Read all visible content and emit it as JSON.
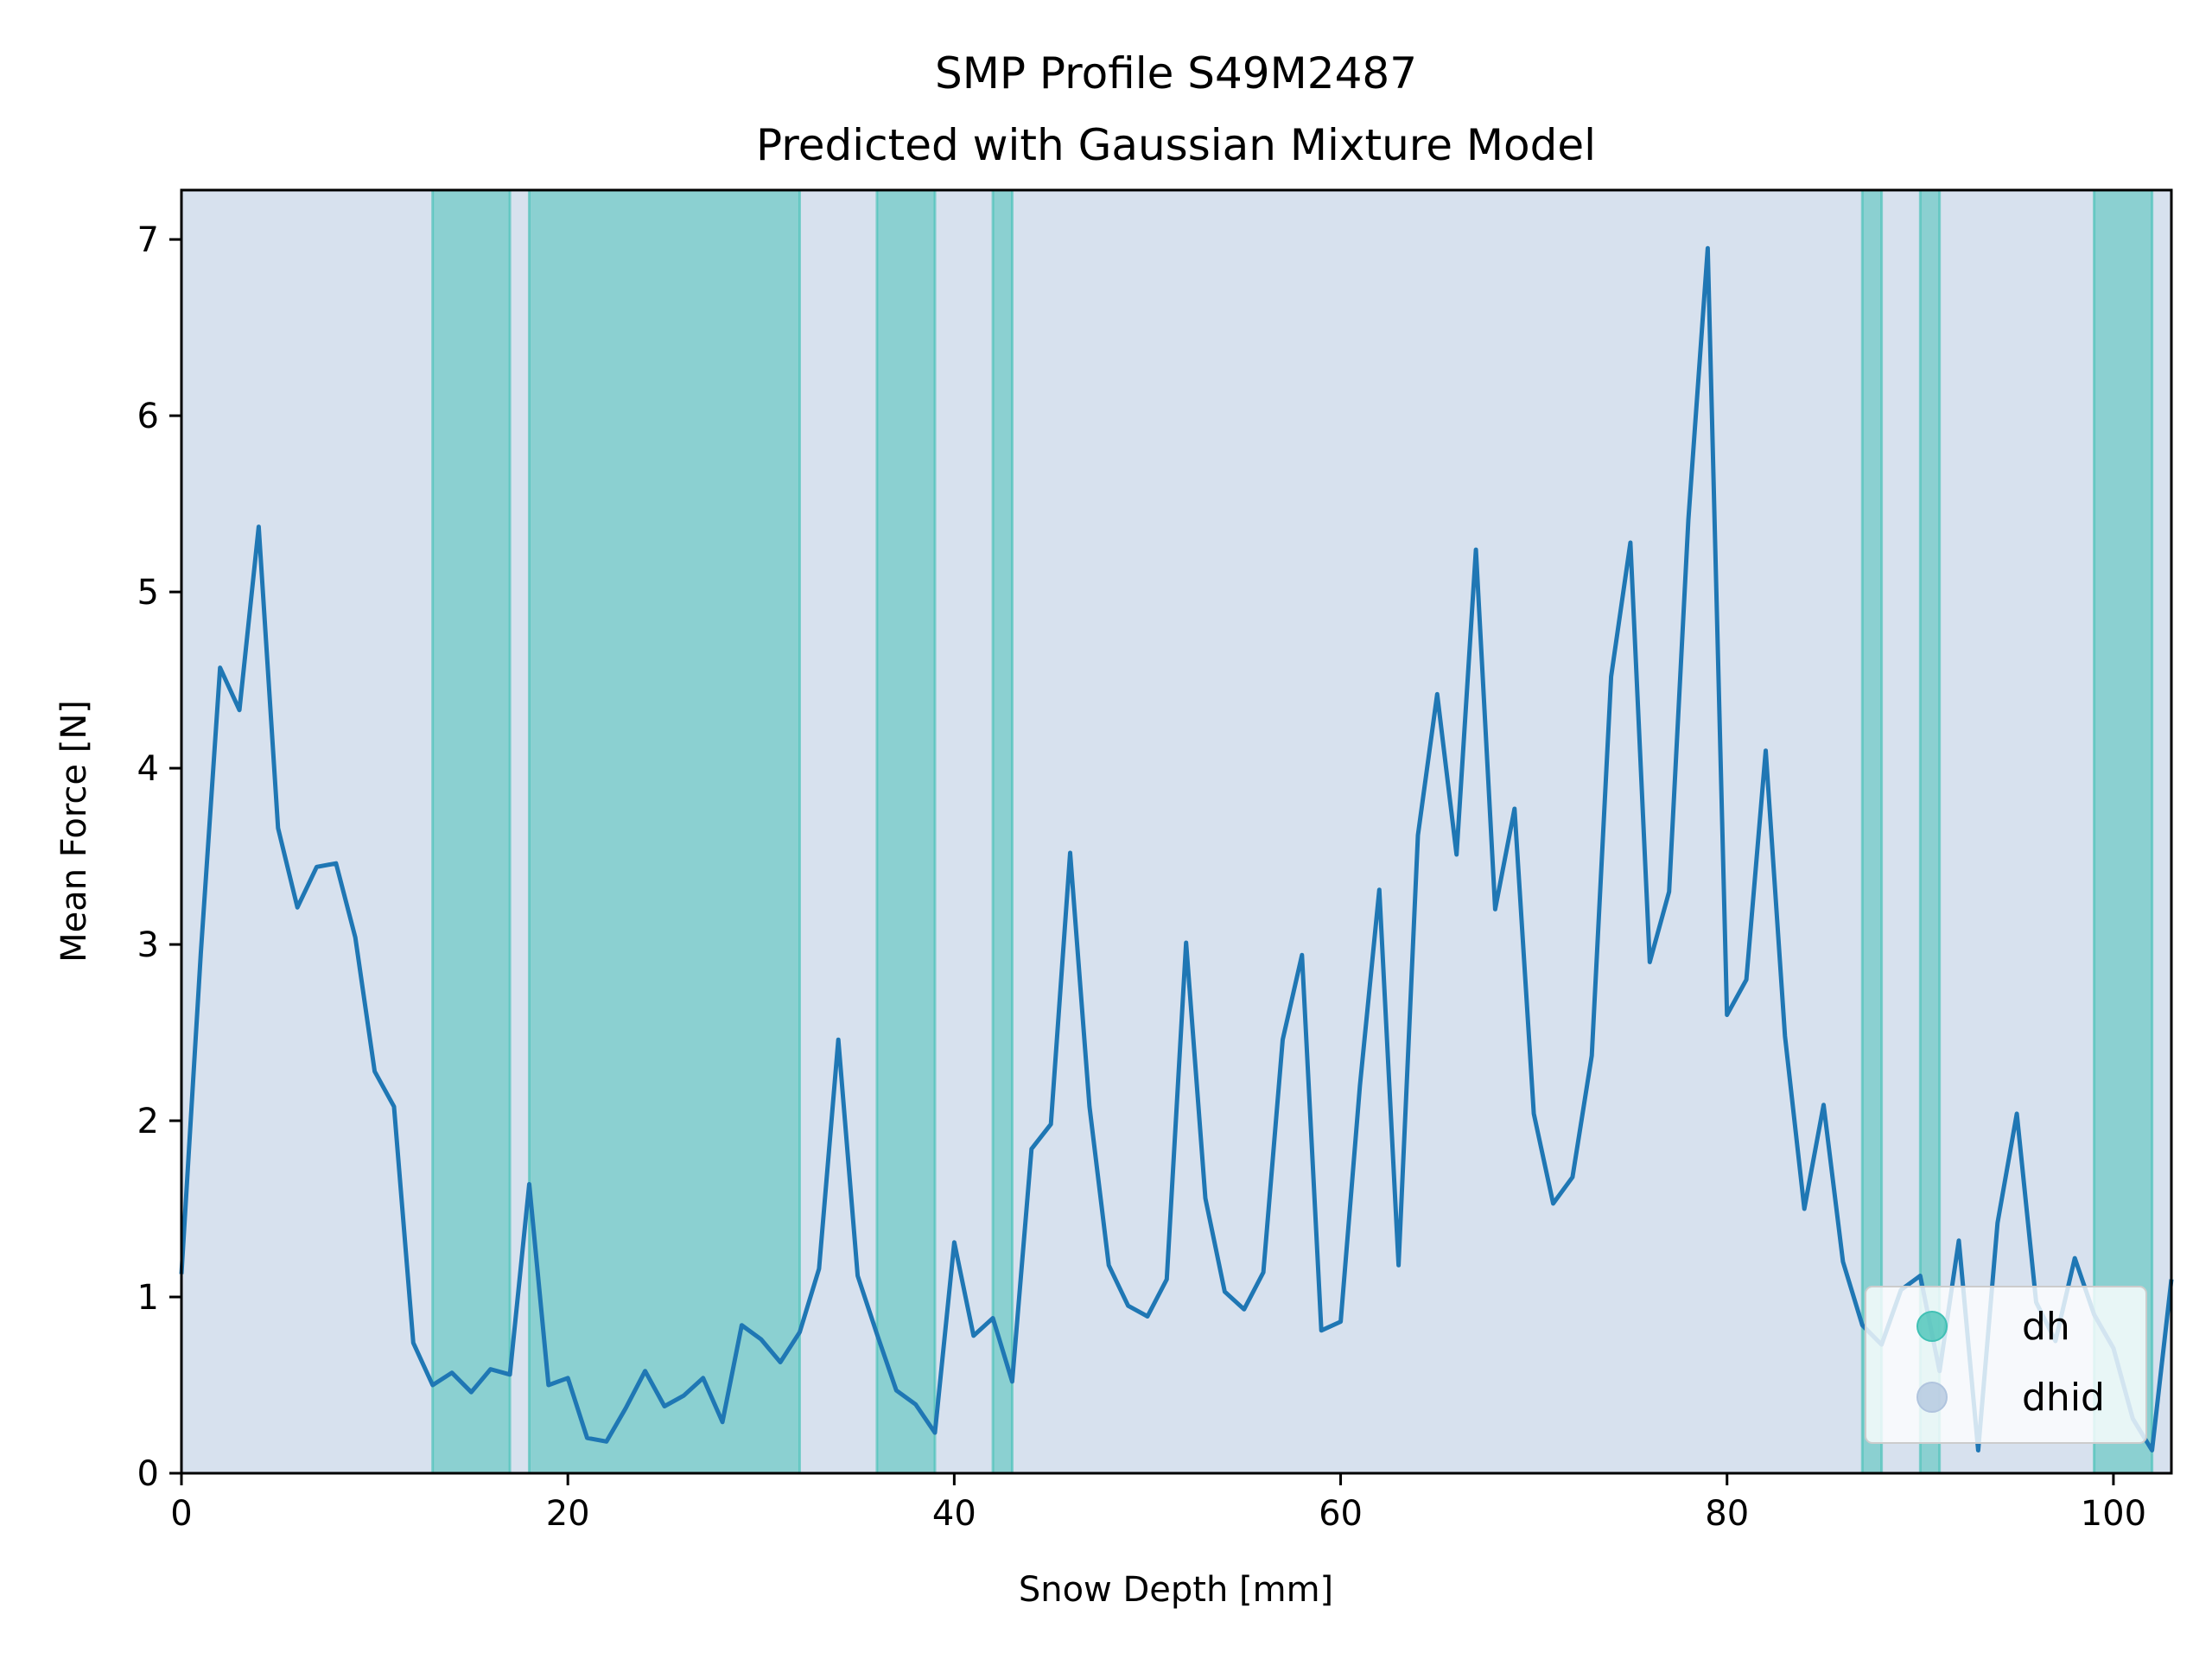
{
  "chart_data": {
    "type": "line",
    "title": "SMP Profile S49M2487",
    "subtitle": "Predicted with Gaussian Mixture Model",
    "xlabel": "Snow Depth [mm]",
    "ylabel": "Mean Force [N]",
    "xlim": [
      0,
      103
    ],
    "ylim": [
      0,
      7.28
    ],
    "xticks": [
      0,
      20,
      40,
      60,
      80,
      100
    ],
    "xtick_labels": [
      "0",
      "20",
      "40",
      "60",
      "80",
      "100"
    ],
    "yticks": [
      0,
      1,
      2,
      3,
      4,
      5,
      6,
      7
    ],
    "ytick_labels": [
      "0",
      "1",
      "2",
      "3",
      "4",
      "5",
      "6",
      "7"
    ],
    "grid": false,
    "legend_position": "lower right",
    "series": [
      {
        "values": [
          1.13,
          2.95,
          4.57,
          4.33,
          5.37,
          3.66,
          3.21,
          3.44,
          3.46,
          3.04,
          2.28,
          2.08,
          0.74,
          0.5,
          0.57,
          0.46,
          0.59,
          0.56,
          1.64,
          0.5,
          0.54,
          0.2,
          0.18,
          0.37,
          0.58,
          0.38,
          0.44,
          0.54,
          0.29,
          0.84,
          0.76,
          0.63,
          0.8,
          1.16,
          2.46,
          1.12,
          0.79,
          0.47,
          0.39,
          0.23,
          1.31,
          0.78,
          0.88,
          0.52,
          1.84,
          1.98,
          3.52,
          2.08,
          1.18,
          0.95,
          0.89,
          1.1,
          3.01,
          1.56,
          1.03,
          0.93,
          1.14,
          2.46,
          2.94,
          0.81,
          0.86,
          2.2,
          3.31,
          1.18,
          3.62,
          4.42,
          3.51,
          5.24,
          3.2,
          3.77,
          2.04,
          1.53,
          1.68,
          2.37,
          4.52,
          5.28,
          2.9,
          3.3,
          5.41,
          6.95,
          2.6,
          2.8,
          4.1,
          2.48,
          1.5,
          2.09,
          1.2,
          0.84,
          0.73,
          1.04,
          1.12,
          0.58,
          1.32,
          0.13,
          1.42,
          2.04,
          0.97,
          0.75,
          1.22,
          0.9,
          0.71,
          0.31,
          0.13,
          1.1
        ],
        "color": "#1f77b4"
      }
    ],
    "segments": {
      "labels": [
        "dh",
        "dhid"
      ],
      "colors": {
        "dh": "#40c0b4",
        "dhid": "#b0c4de"
      },
      "background_label": "dhid",
      "ranges": [
        {
          "label": "dh",
          "from": 13,
          "to": 17
        },
        {
          "label": "dh",
          "from": 18,
          "to": 32
        },
        {
          "label": "dh",
          "from": 36,
          "to": 39
        },
        {
          "label": "dh",
          "from": 42,
          "to": 43
        },
        {
          "label": "dh",
          "from": 87,
          "to": 88
        },
        {
          "label": "dh",
          "from": 90,
          "to": 91
        },
        {
          "label": "dh",
          "from": 99,
          "to": 102
        }
      ]
    },
    "legend": [
      {
        "label": "dh",
        "color": "#40c0b4"
      },
      {
        "label": "dhid",
        "color": "#b0c4de"
      }
    ]
  }
}
